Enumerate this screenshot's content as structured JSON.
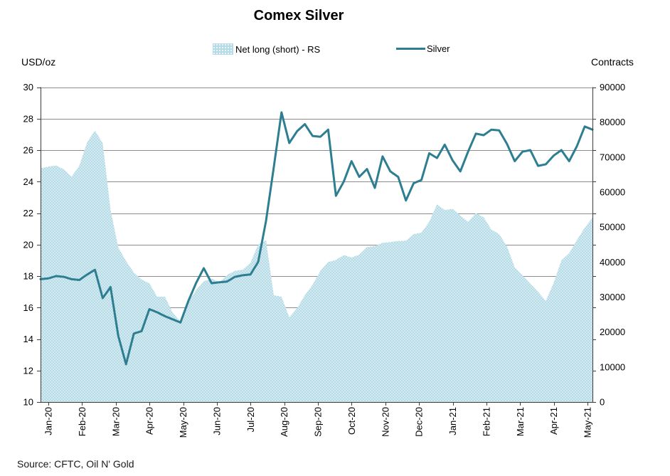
{
  "header": {
    "title": "Comex Silver"
  },
  "legend": [
    {
      "label": "Net long (short) - RS",
      "type": "area-swatch"
    },
    {
      "label": "Silver",
      "type": "line-swatch"
    }
  ],
  "axes": {
    "left_unit_label": "USD/oz",
    "right_unit_label": "Contracts"
  },
  "source": "Source: CFTC, Oil N' Gold",
  "colors": {
    "silver_line": "#2e7e91",
    "net_long_area": "#b5dbe7",
    "gridline": "#8c8c8c",
    "axis": "#3a3a3a",
    "text": "#000000"
  },
  "chart_data": {
    "type": "combo-area-line",
    "title": "Comex Silver",
    "x_tick_labels": [
      "Jan-20",
      "Feb-20",
      "Mar-20",
      "Apr-20",
      "May-20",
      "Jun-20",
      "Jul-20",
      "Aug-20",
      "Sep-20",
      "Oct-20",
      "Nov-20",
      "Dec-20",
      "Jan-21",
      "Feb-21",
      "Mar-21",
      "Apr-21",
      "May-21"
    ],
    "left_axis": {
      "label": "USD/oz",
      "min": 10,
      "max": 30,
      "step": 2
    },
    "right_axis": {
      "label": "Contracts",
      "min": 0,
      "max": 90000,
      "step": 10000
    },
    "grid": "horizontal",
    "legend_position": "top-center",
    "series": [
      {
        "name": "Silver",
        "type": "line",
        "axis": "left",
        "color": "#2e7e91",
        "values": [
          17.8,
          17.85,
          18.0,
          17.95,
          17.8,
          17.75,
          18.1,
          18.4,
          16.6,
          17.3,
          14.2,
          12.4,
          14.35,
          14.5,
          15.9,
          15.7,
          15.45,
          15.25,
          15.05,
          16.4,
          17.55,
          18.5,
          17.55,
          17.6,
          17.65,
          17.95,
          18.05,
          18.1,
          18.9,
          21.5,
          24.9,
          28.4,
          26.45,
          27.2,
          27.65,
          26.9,
          26.85,
          27.3,
          23.1,
          24.0,
          25.3,
          24.3,
          24.8,
          23.6,
          25.6,
          24.65,
          24.3,
          22.8,
          23.9,
          24.1,
          25.8,
          25.5,
          26.35,
          25.35,
          24.65,
          25.9,
          27.05,
          26.95,
          27.3,
          27.25,
          26.4,
          25.3,
          25.9,
          26.0,
          25.0,
          25.1,
          25.65,
          26.0,
          25.3,
          26.25,
          27.5,
          27.3
        ]
      },
      {
        "name": "Net long (short) - RS",
        "type": "area",
        "axis": "right",
        "color": "#b5dbe7",
        "values": [
          66800,
          67300,
          67600,
          66500,
          64400,
          67600,
          74300,
          77600,
          74000,
          55000,
          44200,
          40300,
          37000,
          35000,
          33900,
          30100,
          30100,
          25500,
          23000,
          28500,
          32000,
          34500,
          35300,
          34300,
          36300,
          37500,
          37800,
          39800,
          45000,
          46200,
          30500,
          30100,
          24200,
          26800,
          30500,
          33500,
          37500,
          40000,
          40600,
          42000,
          41300,
          42100,
          44300,
          44600,
          45500,
          45700,
          46000,
          46100,
          48000,
          48400,
          51500,
          56500,
          54900,
          55200,
          53300,
          51500,
          54000,
          52800,
          49300,
          48000,
          44500,
          38500,
          36200,
          33800,
          31500,
          28900,
          34000,
          40500,
          42500,
          46300,
          49800,
          52700
        ]
      }
    ]
  }
}
